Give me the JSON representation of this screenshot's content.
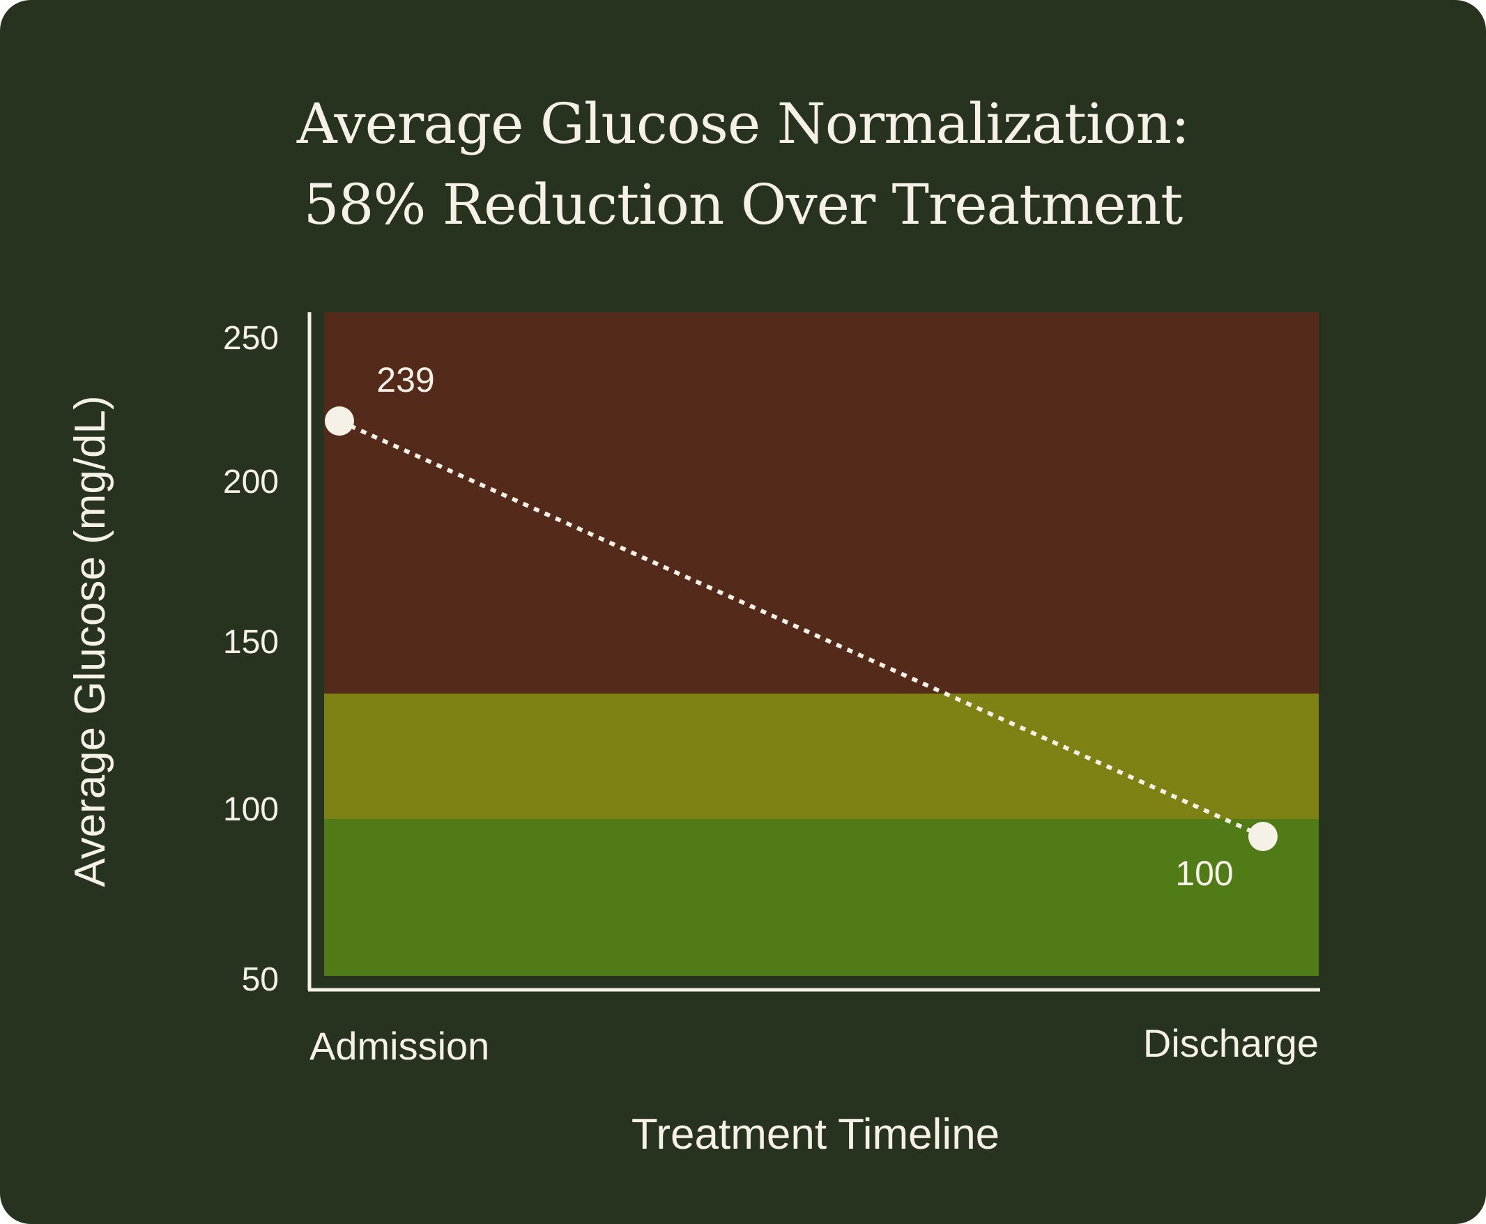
{
  "chart_data": {
    "type": "line",
    "title": "Average Glucose Normalization:",
    "subtitle": "58% Reduction Over Treatment",
    "xlabel": "Treatment Timeline",
    "ylabel": "Average Glucose (mg/dL)",
    "categories": [
      "Admission",
      "Discharge"
    ],
    "series": [
      {
        "values": [
          239,
          100
        ],
        "labels": [
          "239",
          "100"
        ]
      }
    ],
    "yticks": [
      "250",
      "200",
      "150",
      "100",
      "50"
    ],
    "ylim": [
      50,
      250
    ],
    "bands": [
      {
        "from": 50,
        "to": 100,
        "color": "#517b17"
      },
      {
        "from": 100,
        "to": 140,
        "color": "#7e8114"
      },
      {
        "from": 140,
        "to": 250,
        "color": "#542b1a"
      }
    ],
    "line_style": "dotted",
    "grid": false
  },
  "colors": {
    "background": "#28331f",
    "text": "#f5f1e6",
    "marker": "#f5f1e6"
  }
}
